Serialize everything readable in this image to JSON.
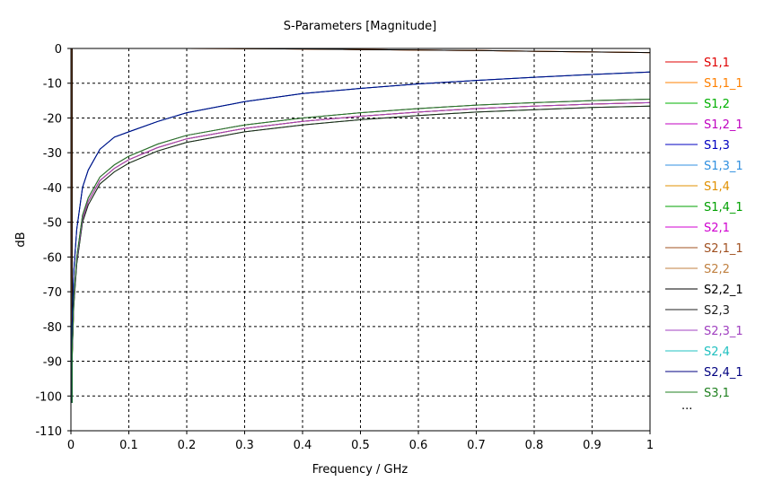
{
  "chart_data": {
    "type": "line",
    "title": "S-Parameters [Magnitude]",
    "xlabel": "Frequency / GHz",
    "ylabel": "dB",
    "xlim": [
      0,
      1
    ],
    "ylim": [
      -110,
      0
    ],
    "x_ticks": [
      "0",
      "0.1",
      "0.2",
      "0.3",
      "0.4",
      "0.5",
      "0.6",
      "0.7",
      "0.8",
      "0.9",
      "1"
    ],
    "y_ticks": [
      "0",
      "-10",
      "-20",
      "-30",
      "-40",
      "-50",
      "-60",
      "-70",
      "-80",
      "-90",
      "-100",
      "-110"
    ],
    "grid": true,
    "legend_position": "right",
    "legend_more": "...",
    "x": [
      0.002,
      0.005,
      0.01,
      0.02,
      0.03,
      0.05,
      0.075,
      0.1,
      0.15,
      0.2,
      0.3,
      0.4,
      0.5,
      0.6,
      0.7,
      0.8,
      0.9,
      1.0
    ],
    "series": [
      {
        "name": "S1,1",
        "color": "#e00000",
        "values": [
          0,
          0,
          0,
          0,
          0,
          0,
          0,
          0,
          0,
          0,
          -0.05,
          -0.15,
          -0.3,
          -0.45,
          -0.6,
          -0.8,
          -1.0,
          -1.2
        ]
      },
      {
        "name": "S1,1_1",
        "color": "#ff8000",
        "values": [
          0,
          0,
          0,
          0,
          0,
          0,
          0,
          0,
          0,
          0,
          -0.05,
          -0.15,
          -0.3,
          -0.45,
          -0.6,
          -0.8,
          -1.0,
          -1.2
        ]
      },
      {
        "name": "S1,2",
        "color": "#00b000",
        "values": [
          -88,
          -72,
          -60,
          -48,
          -43,
          -37,
          -33.5,
          -31,
          -27.5,
          -25,
          -22,
          -20,
          -18.5,
          -17.3,
          -16.3,
          -15.6,
          -15.0,
          -14.6
        ]
      },
      {
        "name": "S1,2_1",
        "color": "#c000c0",
        "values": [
          -89,
          -73,
          -61,
          -49,
          -44,
          -38,
          -34.5,
          -32,
          -28.5,
          -26,
          -23,
          -21,
          -19.5,
          -18.3,
          -17.3,
          -16.6,
          -16.0,
          -15.6
        ]
      },
      {
        "name": "S1,3",
        "color": "#0000c0",
        "values": [
          -80,
          -64,
          -52,
          -40,
          -35,
          -29,
          -25.5,
          -24,
          -21,
          -18.5,
          -15.3,
          -13,
          -11.5,
          -10.2,
          -9.2,
          -8.3,
          -7.5,
          -6.8
        ]
      },
      {
        "name": "S1,3_1",
        "color": "#3090e0",
        "values": [
          -80,
          -64,
          -52,
          -40,
          -35,
          -29,
          -25.5,
          -24,
          -21,
          -18.5,
          -15.3,
          -13,
          -11.5,
          -10.2,
          -9.2,
          -8.3,
          -7.5,
          -6.8
        ]
      },
      {
        "name": "S1,4",
        "color": "#e09000",
        "values": [
          -89,
          -73,
          -61,
          -49,
          -44,
          -38,
          -34.5,
          -32,
          -28.5,
          -26,
          -23,
          -21,
          -19.5,
          -18.3,
          -17.3,
          -16.6,
          -16.0,
          -15.6
        ]
      },
      {
        "name": "S1,4_1",
        "color": "#00a000",
        "values": [
          -90,
          -74,
          -62,
          -50,
          -45,
          -39,
          -35.5,
          -33,
          -29.5,
          -27,
          -24,
          -22,
          -20.5,
          -19.3,
          -18.3,
          -17.6,
          -17.0,
          -16.6
        ]
      },
      {
        "name": "S2,1",
        "color": "#d000d0",
        "values": [
          -88,
          -72,
          -60,
          -48,
          -43,
          -37,
          -33.5,
          -31,
          -27.5,
          -25,
          -22,
          -20,
          -18.5,
          -17.3,
          -16.3,
          -15.6,
          -15.0,
          -14.6
        ]
      },
      {
        "name": "S2,1_1",
        "color": "#a05020",
        "values": [
          -89,
          -73,
          -61,
          -49,
          -44,
          -38,
          -34.5,
          -32,
          -28.5,
          -26,
          -23,
          -21,
          -19.5,
          -18.3,
          -17.3,
          -16.6,
          -16.0,
          -15.6
        ]
      },
      {
        "name": "S2,2",
        "color": "#c08040",
        "values": [
          0,
          0,
          0,
          0,
          0,
          0,
          0,
          0,
          0,
          0,
          -0.05,
          -0.15,
          -0.3,
          -0.45,
          -0.6,
          -0.8,
          -1.0,
          -1.2
        ]
      },
      {
        "name": "S2,2_1",
        "color": "#000000",
        "values": [
          0,
          0,
          0,
          0,
          0,
          0,
          0,
          0,
          0,
          0,
          -0.05,
          -0.15,
          -0.3,
          -0.45,
          -0.6,
          -0.8,
          -1.0,
          -1.2
        ]
      },
      {
        "name": "S2,3",
        "color": "#202020",
        "values": [
          -90,
          -74,
          -62,
          -50,
          -45,
          -39,
          -35.5,
          -33,
          -29.5,
          -27,
          -24,
          -22,
          -20.5,
          -19.3,
          -18.3,
          -17.6,
          -17.0,
          -16.6
        ]
      },
      {
        "name": "S2,3_1",
        "color": "#a040c0",
        "values": [
          -89,
          -73,
          -61,
          -49,
          -44,
          -38,
          -34.5,
          -32,
          -28.5,
          -26,
          -23,
          -21,
          -19.5,
          -18.3,
          -17.3,
          -16.6,
          -16.0,
          -15.6
        ]
      },
      {
        "name": "S2,4",
        "color": "#20c0c0",
        "values": [
          -80,
          -64,
          -52,
          -40,
          -35,
          -29,
          -25.5,
          -24,
          -21,
          -18.5,
          -15.3,
          -13,
          -11.5,
          -10.2,
          -9.2,
          -8.3,
          -7.5,
          -6.8
        ]
      },
      {
        "name": "S2,4_1",
        "color": "#000080",
        "values": [
          -80,
          -64,
          -52,
          -40,
          -35,
          -29,
          -25.5,
          -24,
          -21,
          -18.5,
          -15.3,
          -13,
          -11.5,
          -10.2,
          -9.2,
          -8.3,
          -7.5,
          -6.8
        ]
      },
      {
        "name": "S3,1",
        "color": "#208020",
        "values": [
          -88,
          -72,
          -60,
          -48,
          -43,
          -37,
          -33.5,
          -31,
          -27.5,
          -25,
          -22,
          -20,
          -18.5,
          -17.3,
          -16.3,
          -15.6,
          -15.0,
          -14.6
        ]
      }
    ]
  }
}
